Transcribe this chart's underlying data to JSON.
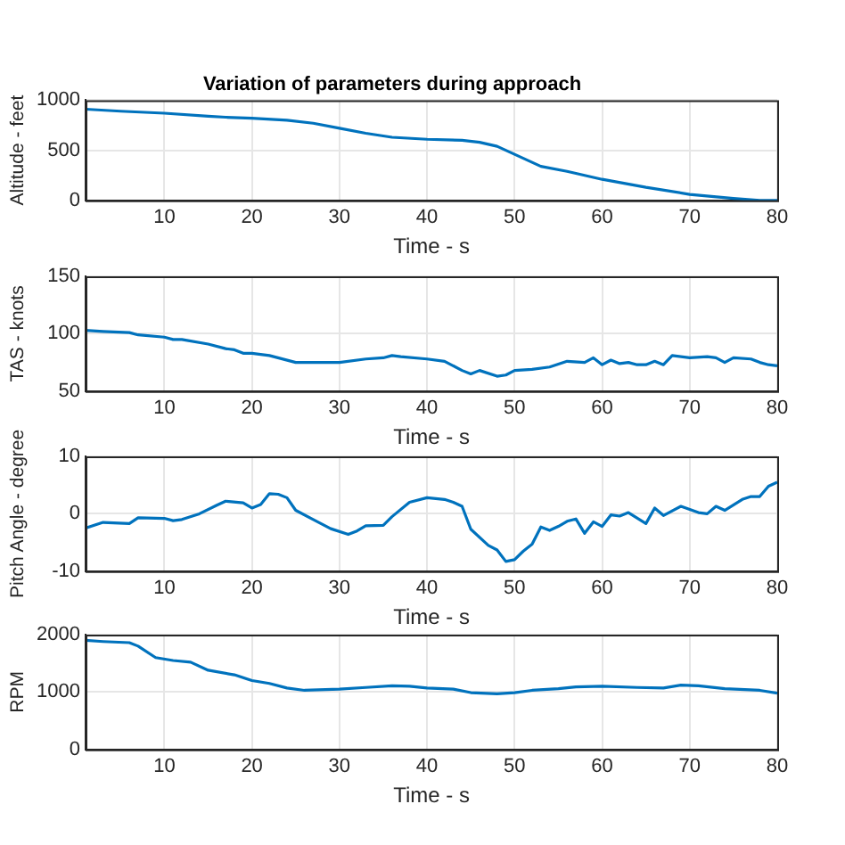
{
  "chart_data": [
    {
      "type": "line",
      "title": "Variation of parameters during approach",
      "xlabel": "Time - s",
      "ylabel": "Altitude - feet",
      "color": "#0072bd",
      "grid": true,
      "xlim": [
        1,
        80
      ],
      "xticks": [
        10,
        20,
        30,
        40,
        50,
        60,
        70,
        80
      ],
      "ylim": [
        0,
        1000
      ],
      "yticks": [
        0,
        500,
        1000
      ],
      "x": [
        1,
        5,
        10,
        15,
        17,
        20,
        24,
        27,
        30,
        33,
        36,
        40,
        44,
        46,
        48,
        50,
        51,
        53,
        56,
        60,
        65,
        70,
        75,
        78,
        80
      ],
      "values": [
        910,
        890,
        870,
        840,
        830,
        820,
        800,
        770,
        720,
        670,
        630,
        610,
        600,
        580,
        540,
        460,
        420,
        340,
        290,
        210,
        130,
        60,
        20,
        0,
        0
      ]
    },
    {
      "type": "line",
      "xlabel": "Time - s",
      "ylabel": "TAS - knots",
      "color": "#0072bd",
      "grid": true,
      "xlim": [
        1,
        80
      ],
      "xticks": [
        10,
        20,
        30,
        40,
        50,
        60,
        70,
        80
      ],
      "ylim": [
        50,
        150
      ],
      "yticks": [
        50,
        100,
        150
      ],
      "x": [
        1,
        3,
        6,
        7,
        10,
        11,
        12,
        15,
        17,
        18,
        19,
        20,
        22,
        25,
        27,
        30,
        33,
        35,
        36,
        37,
        40,
        42,
        44,
        45,
        46,
        48,
        49,
        50,
        52,
        54,
        56,
        58,
        59,
        60,
        61,
        62,
        63,
        64,
        65,
        66,
        67,
        68,
        70,
        72,
        73,
        74,
        75,
        77,
        78,
        79,
        80
      ],
      "values": [
        103,
        102,
        101,
        99,
        97,
        95,
        95,
        91,
        87,
        86,
        83,
        83,
        81,
        75,
        75,
        75,
        78,
        79,
        81,
        80,
        78,
        76,
        68,
        65,
        68,
        63,
        64,
        68,
        69,
        71,
        76,
        75,
        79,
        73,
        77,
        74,
        75,
        73,
        73,
        76,
        73,
        81,
        79,
        80,
        79,
        75,
        79,
        78,
        75,
        73,
        72
      ]
    },
    {
      "type": "line",
      "xlabel": "Time - s",
      "ylabel": "Pitch Angle - degree",
      "color": "#0072bd",
      "grid": true,
      "xlim": [
        1,
        80
      ],
      "xticks": [
        10,
        20,
        30,
        40,
        50,
        60,
        70,
        80
      ],
      "ylim": [
        -10,
        10
      ],
      "yticks": [
        -10,
        0,
        10
      ],
      "x": [
        1,
        3,
        6,
        7,
        10,
        11,
        12,
        14,
        16,
        17,
        19,
        20,
        21,
        22,
        23,
        24,
        25,
        27,
        29,
        31,
        32,
        33,
        35,
        36,
        38,
        40,
        42,
        43,
        44,
        45,
        47,
        48,
        49,
        50,
        51,
        52,
        53,
        54,
        55,
        56,
        57,
        58,
        59,
        60,
        61,
        62,
        63,
        65,
        66,
        67,
        69,
        71,
        72,
        73,
        74,
        76,
        77,
        78,
        79,
        80
      ],
      "values": [
        -2.5,
        -1.5,
        -1.7,
        -0.7,
        -0.8,
        -1.2,
        -1,
        0,
        1.5,
        2.2,
        1.9,
        1,
        1.6,
        3.5,
        3.4,
        2.8,
        0.6,
        -1,
        -2.6,
        -3.6,
        -3,
        -2.1,
        -2,
        -0.5,
        2,
        2.8,
        2.5,
        2,
        1.3,
        -2.7,
        -5.5,
        -6.3,
        -8.3,
        -8,
        -6.5,
        -5.3,
        -2.3,
        -2.9,
        -2.2,
        -1.3,
        -0.9,
        -3.4,
        -1.4,
        -2.2,
        -0.2,
        -0.4,
        0.2,
        -1.7,
        1,
        -0.3,
        1.3,
        0.2,
        0,
        1.3,
        0.6,
        2.5,
        3,
        3,
        4.8,
        5.5
      ]
    },
    {
      "type": "line",
      "xlabel": "Time - s",
      "ylabel": "RPM",
      "color": "#0072bd",
      "grid": true,
      "xlim": [
        1,
        80
      ],
      "xticks": [
        10,
        20,
        30,
        40,
        50,
        60,
        70,
        80
      ],
      "ylim": [
        0,
        2000
      ],
      "yticks": [
        0,
        1000,
        2000
      ],
      "x": [
        1,
        3,
        6,
        7,
        9,
        11,
        13,
        15,
        18,
        20,
        22,
        24,
        26,
        30,
        33,
        36,
        38,
        40,
        43,
        45,
        48,
        50,
        52,
        55,
        57,
        60,
        64,
        67,
        69,
        71,
        74,
        78,
        80
      ],
      "values": [
        1900,
        1880,
        1860,
        1800,
        1600,
        1550,
        1520,
        1380,
        1300,
        1200,
        1150,
        1070,
        1030,
        1050,
        1080,
        1110,
        1100,
        1070,
        1050,
        990,
        970,
        990,
        1030,
        1060,
        1090,
        1100,
        1080,
        1070,
        1120,
        1110,
        1060,
        1030,
        980
      ]
    }
  ]
}
